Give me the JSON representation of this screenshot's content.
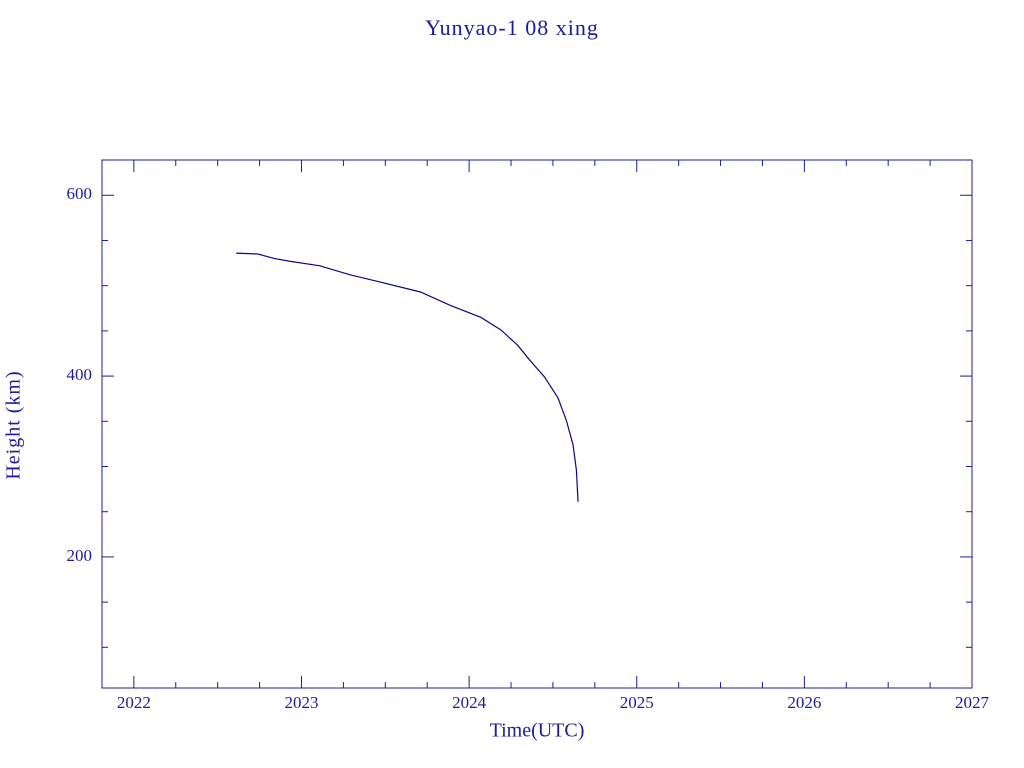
{
  "chart_data": {
    "type": "line",
    "title": "Yunyao-1 08 xing",
    "x_label": "Time(UTC)",
    "y_label": "Height (km)",
    "color": "#0a0a80",
    "x": [
      2022.61,
      2022.74,
      2022.84,
      2022.93,
      2023.11,
      2023.29,
      2023.47,
      2023.71,
      2023.89,
      2024.07,
      2024.19,
      2024.29,
      2024.36,
      2024.45,
      2024.53,
      2024.58,
      2024.62,
      2024.64,
      2024.65
    ],
    "values": [
      536,
      535,
      530,
      527,
      522,
      512,
      504,
      493,
      478,
      465,
      451,
      434,
      418,
      399,
      376,
      351,
      324,
      296,
      261
    ],
    "xlim": [
      2021.81,
      2027
    ],
    "xticks": [
      2022,
      2023,
      2024,
      2025,
      2026,
      2027
    ],
    "ylim": [
      55,
      639
    ],
    "yticks": [
      200,
      400,
      600
    ],
    "minor_subdivisions": 4
  }
}
